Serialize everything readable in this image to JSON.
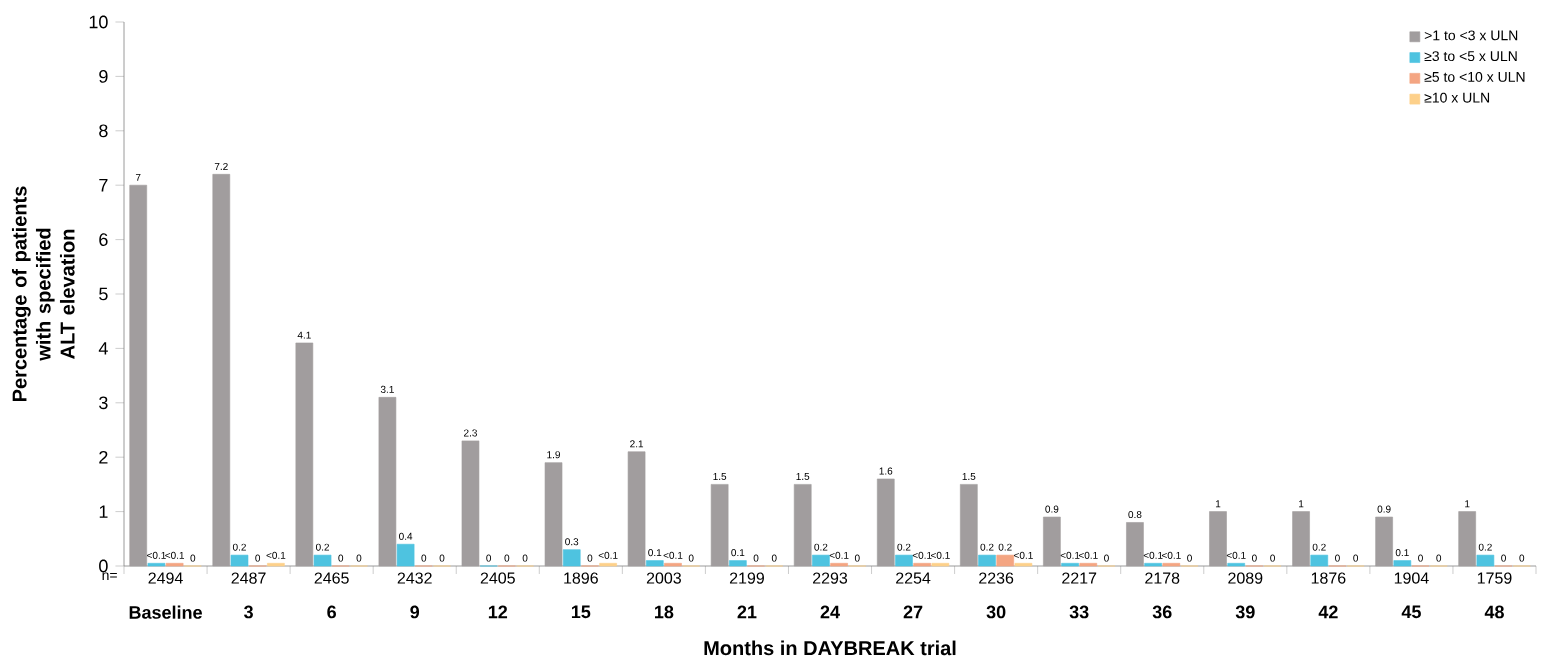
{
  "chart_data": {
    "type": "bar",
    "ylabel": "Percentage of patients with specified ALT elevation",
    "xlabel": "Months in DAYBREAK trial",
    "categories": [
      "Baseline",
      "3",
      "6",
      "9",
      "12",
      "15",
      "18",
      "21",
      "24",
      "27",
      "30",
      "33",
      "36",
      "39",
      "42",
      "45",
      "48"
    ],
    "series": [
      {
        "name": ">1 to <3 x ULN",
        "color": "#a19d9e",
        "values": [
          7,
          7.2,
          4.1,
          3.1,
          2.3,
          1.9,
          2.1,
          1.5,
          1.5,
          1.6,
          1.5,
          0.9,
          0.8,
          1,
          1,
          0.9,
          1
        ],
        "value_labels": [
          "7",
          "7.2",
          "4.1",
          "3.1",
          "2.3",
          "1.9",
          "2.1",
          "1.5",
          "1.5",
          "1.6",
          "1.5",
          "0.9",
          "0.8",
          "1",
          "1",
          "0.9",
          "1"
        ]
      },
      {
        "name": "≥3 to <5 x ULN",
        "color": "#4ec3e0",
        "values": [
          0.05,
          0.2,
          0.2,
          0.4,
          0,
          0.3,
          0.1,
          0.1,
          0.2,
          0.2,
          0.2,
          0.05,
          0.05,
          0.05,
          0.2,
          0.1,
          0.2
        ],
        "value_labels": [
          "<0.1",
          "0.2",
          "0.2",
          "0.4",
          "0",
          "0.3",
          "0.1",
          "0.1",
          "0.2",
          "0.2",
          "0.2",
          "<0.1",
          "<0.1",
          "<0.1",
          "0.2",
          "0.1",
          "0.2"
        ]
      },
      {
        "name": "≥5 to <10 x ULN",
        "color": "#f4a582",
        "values": [
          0.05,
          0,
          0,
          0,
          0,
          0,
          0.05,
          0,
          0.05,
          0.05,
          0.2,
          0.05,
          0.05,
          0,
          0,
          0,
          0
        ],
        "value_labels": [
          "<0.1",
          "0",
          "0",
          "0",
          "0",
          "0",
          "<0.1",
          "0",
          "<0.1",
          "<0.1",
          "0.2",
          "<0.1",
          "<0.1",
          "0",
          "0",
          "0",
          "0"
        ]
      },
      {
        "name": "≥10 x ULN",
        "color": "#fdd08a",
        "values": [
          0,
          0.05,
          0,
          0,
          0,
          0.05,
          0,
          0,
          0,
          0.05,
          0.05,
          0,
          0,
          0,
          0,
          0,
          0
        ],
        "value_labels": [
          "0",
          "<0.1",
          "0",
          "0",
          "0",
          "<0.1",
          "0",
          "0",
          "0",
          "<0.1",
          "<0.1",
          "0",
          "0",
          "0",
          "0",
          "0",
          "0"
        ]
      }
    ],
    "ylim": [
      0,
      10
    ],
    "yticks": [
      0,
      1,
      2,
      3,
      4,
      5,
      6,
      7,
      8,
      9,
      10
    ],
    "legend": "top right",
    "annotations": [
      "n=",
      "2494",
      "2487",
      "2465",
      "2432",
      "2405",
      "1896",
      "2003",
      "2199",
      "2293",
      "2254",
      "2236",
      "2217",
      "2178",
      "2089",
      "1876",
      "1904",
      "1759"
    ]
  }
}
